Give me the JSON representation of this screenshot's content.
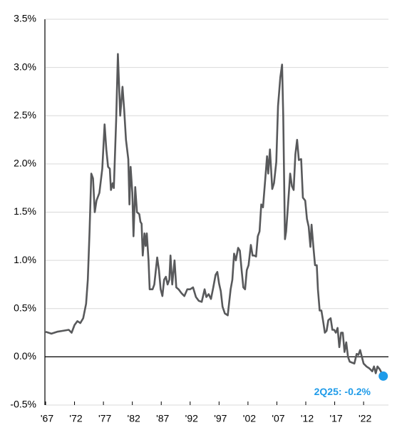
{
  "chart_data": {
    "type": "line",
    "x": [
      1967,
      1968,
      1969,
      1970,
      1971,
      1971.5,
      1972,
      1972.5,
      1973,
      1973.5,
      1974,
      1974.3,
      1974.6,
      1974.9,
      1975.2,
      1975.5,
      1975.8,
      1976.3,
      1976.8,
      1977.2,
      1977.5,
      1977.8,
      1978.1,
      1978.3,
      1978.6,
      1978.8,
      1979.2,
      1979.5,
      1979.9,
      1980.3,
      1980.6,
      1980.9,
      1981.3,
      1981.5,
      1981.7,
      1982.0,
      1982.2,
      1982.5,
      1982.8,
      1983.2,
      1983.4,
      1983.6,
      1983.8,
      1984.1,
      1984.3,
      1984.5,
      1984.8,
      1985.0,
      1985.5,
      1985.8,
      1986.3,
      1986.6,
      1986.9,
      1987.2,
      1987.5,
      1987.8,
      1988.1,
      1988.4,
      1988.6,
      1988.9,
      1989.3,
      1989.6,
      1990.0,
      1990.5,
      1991.0,
      1991.5,
      1992.0,
      1992.5,
      1993.0,
      1993.5,
      1994.0,
      1994.5,
      1994.8,
      1995.2,
      1995.6,
      1996.0,
      1996.4,
      1996.7,
      1997.0,
      1997.3,
      1997.6,
      1998.0,
      1998.5,
      1999.0,
      1999.3,
      1999.6,
      1999.9,
      2000.3,
      2000.6,
      2000.9,
      2001.2,
      2001.5,
      2001.8,
      2002.1,
      2002.5,
      2002.8,
      2003.1,
      2003.4,
      2003.7,
      2004.0,
      2004.3,
      2004.6,
      2005.0,
      2005.3,
      2005.5,
      2005.8,
      2006.2,
      2006.5,
      2006.9,
      2007.2,
      2007.6,
      2007.9,
      2008.1,
      2008.4,
      2008.6,
      2008.9,
      2009.3,
      2009.6,
      2009.9,
      2010.2,
      2010.5,
      2010.8,
      2011.2,
      2011.5,
      2011.9,
      2012.2,
      2012.5,
      2012.8,
      2013.0,
      2013.3,
      2013.6,
      2013.9,
      2014.1,
      2014.4,
      2014.7,
      2015.0,
      2015.3,
      2015.6,
      2015.9,
      2016.3,
      2016.6,
      2016.9,
      2017.2,
      2017.5,
      2017.8,
      2018.1,
      2018.4,
      2018.7,
      2019.0,
      2019.3,
      2019.6,
      2020.0,
      2020.4,
      2020.8,
      2021.1,
      2021.4,
      2021.7,
      2022.0,
      2022.5,
      2023.0,
      2023.5,
      2023.8,
      2024.1,
      2024.4,
      2024.8,
      2025.4
    ],
    "values": [
      0.26,
      0.24,
      0.26,
      0.27,
      0.28,
      0.25,
      0.33,
      0.37,
      0.35,
      0.4,
      0.55,
      0.8,
      1.3,
      1.9,
      1.85,
      1.5,
      1.62,
      1.7,
      1.95,
      2.41,
      2.15,
      1.97,
      1.95,
      1.73,
      1.8,
      1.75,
      2.45,
      3.14,
      2.5,
      2.8,
      2.55,
      2.25,
      2.05,
      1.58,
      1.97,
      1.7,
      1.25,
      1.76,
      1.5,
      1.48,
      1.4,
      1.38,
      1.05,
      1.28,
      1.15,
      1.28,
      1.0,
      0.7,
      0.7,
      0.75,
      1.03,
      0.9,
      0.7,
      0.63,
      0.8,
      0.83,
      0.75,
      0.8,
      1.05,
      0.75,
      1.0,
      0.72,
      0.7,
      0.66,
      0.63,
      0.7,
      0.7,
      0.72,
      0.62,
      0.58,
      0.57,
      0.7,
      0.62,
      0.65,
      0.6,
      0.72,
      0.85,
      0.88,
      0.76,
      0.68,
      0.52,
      0.45,
      0.43,
      0.7,
      0.8,
      1.07,
      1.0,
      1.13,
      1.1,
      0.9,
      0.72,
      0.7,
      0.9,
      0.95,
      1.16,
      1.05,
      1.05,
      1.04,
      1.25,
      1.3,
      1.58,
      1.55,
      1.85,
      2.08,
      1.9,
      2.15,
      1.74,
      1.8,
      2.02,
      2.6,
      2.9,
      3.03,
      2.5,
      1.22,
      1.3,
      1.55,
      1.9,
      1.77,
      1.73,
      2.1,
      2.25,
      2.04,
      2.05,
      1.65,
      1.62,
      1.43,
      1.35,
      1.14,
      1.37,
      1.15,
      0.95,
      0.95,
      0.7,
      0.48,
      0.48,
      0.37,
      0.25,
      0.27,
      0.38,
      0.4,
      0.28,
      0.28,
      0.25,
      0.3,
      0.1,
      0.25,
      0.25,
      0.05,
      0.15,
      0.0,
      -0.05,
      -0.06,
      -0.07,
      0.03,
      0.02,
      0.07,
      0.0,
      -0.07,
      -0.1,
      -0.12,
      -0.15,
      -0.1,
      -0.17,
      -0.1,
      -0.13,
      -0.2
    ],
    "color": "#58595b",
    "marker_color": "#1e9be9",
    "annotation": "2Q25: -0.2%",
    "xlim": [
      1967,
      2026.3
    ],
    "xticks": [
      {
        "value": 1967,
        "label": "'67"
      },
      {
        "value": 1972,
        "label": "'72"
      },
      {
        "value": 1977,
        "label": "'77"
      },
      {
        "value": 1982,
        "label": "'82"
      },
      {
        "value": 1987,
        "label": "'87"
      },
      {
        "value": 1992,
        "label": "'92"
      },
      {
        "value": 1997,
        "label": "'97"
      },
      {
        "value": 2002,
        "label": "'02"
      },
      {
        "value": 2007,
        "label": "'07"
      },
      {
        "value": 2012,
        "label": "'12"
      },
      {
        "value": 2017,
        "label": "'17"
      },
      {
        "value": 2022,
        "label": "'22"
      }
    ],
    "ylim": [
      -0.5,
      3.5
    ],
    "yticks": [
      {
        "value": -0.5,
        "label": "-0.5%"
      },
      {
        "value": 0,
        "label": "0.0%"
      },
      {
        "value": 0.5,
        "label": "0.5%"
      },
      {
        "value": 1,
        "label": "1.0%"
      },
      {
        "value": 1.5,
        "label": "1.5%"
      },
      {
        "value": 2,
        "label": "2.0%"
      },
      {
        "value": 2.5,
        "label": "2.5%"
      },
      {
        "value": 3,
        "label": "3.0%"
      },
      {
        "value": 3.5,
        "label": "3.5%"
      }
    ],
    "grid": true
  }
}
